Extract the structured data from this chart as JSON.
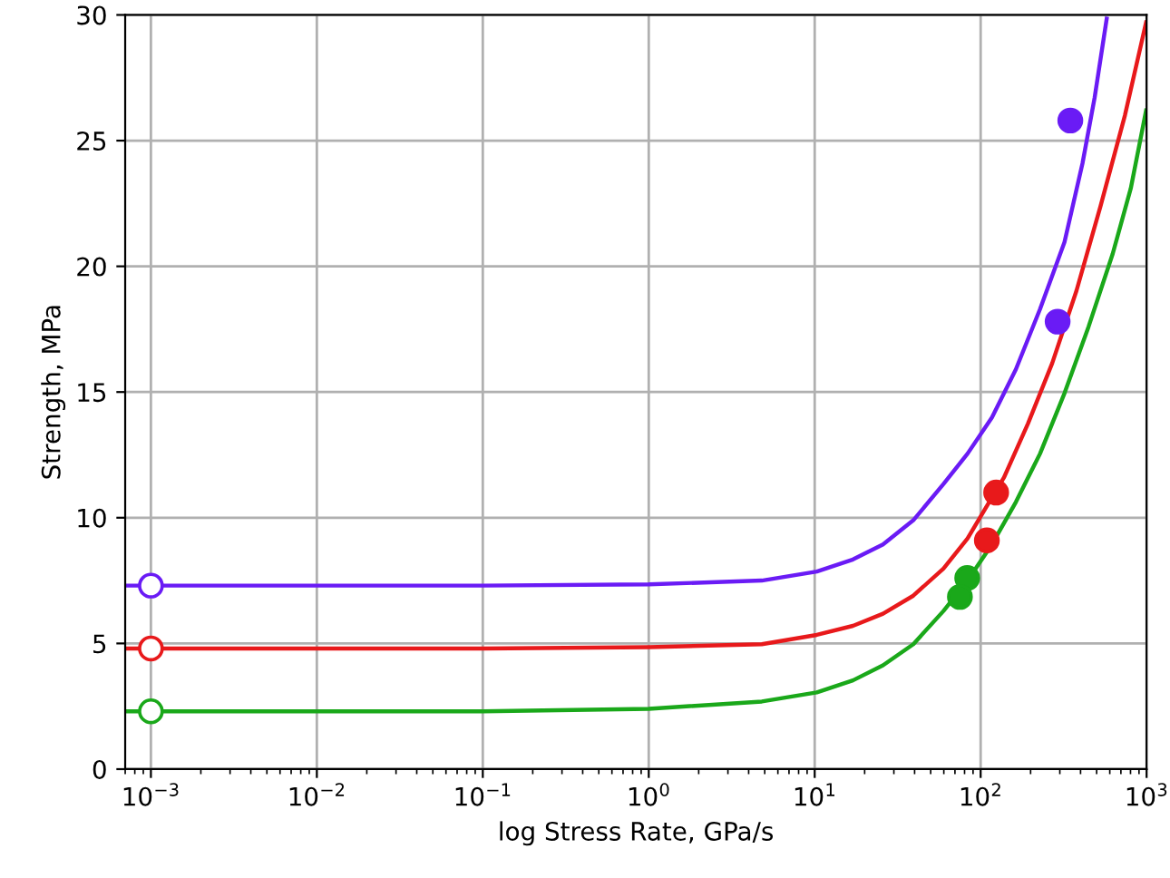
{
  "chart_data": {
    "type": "line",
    "xlabel": "log Stress Rate, GPa/s",
    "ylabel": "Strength, MPa",
    "log": "x",
    "xlim": [
      0.0007,
      1000
    ],
    "ylim": [
      0,
      30
    ],
    "xticks": [
      {
        "value": 0.001,
        "label": "10$^{−3}$"
      },
      {
        "value": 0.01,
        "label": "10$^{−2}$"
      },
      {
        "value": 0.1,
        "label": "10$^{−1}$"
      },
      {
        "value": 1,
        "label": "10$^{0}$"
      },
      {
        "value": 10,
        "label": "10$^{1}$"
      },
      {
        "value": 100,
        "label": "10$^{2}$"
      },
      {
        "value": 1000,
        "label": "10$^{3}$"
      }
    ],
    "yticks": [
      0,
      5,
      10,
      15,
      20,
      25,
      30
    ],
    "grid": true,
    "line_style": "solid",
    "series": [
      {
        "color": "#6a1bf5",
        "x": [
          0.0007,
          0.001,
          0.01,
          0.1,
          1,
          4.8,
          10.3,
          17,
          25.8,
          39.3,
          59.7,
          83.4,
          117,
          163,
          228,
          320,
          411,
          486,
          575
        ],
        "values": [
          7.3,
          7.3,
          7.3,
          7.3,
          7.35,
          7.5,
          7.86,
          8.34,
          8.94,
          9.9,
          11.34,
          12.55,
          13.99,
          15.9,
          18.3,
          20.96,
          24.1,
          26.7,
          29.85
        ]
      },
      {
        "color": "#e8191b",
        "x": [
          0.0007,
          0.001,
          0.01,
          0.1,
          1,
          4.8,
          10.3,
          17,
          25.8,
          39.3,
          59.7,
          83.4,
          107,
          138,
          193,
          270,
          378,
          528,
          740,
          993
        ],
        "values": [
          4.8,
          4.8,
          4.8,
          4.8,
          4.85,
          4.97,
          5.34,
          5.7,
          6.18,
          6.9,
          7.98,
          9.18,
          10.38,
          11.59,
          13.75,
          16.15,
          19.03,
          22.4,
          26.0,
          29.7
        ]
      },
      {
        "color": "#1aa81a",
        "x": [
          0.0007,
          0.001,
          0.01,
          0.1,
          1,
          4.8,
          10.3,
          17,
          25.8,
          39.3,
          59.7,
          83.4,
          117,
          163,
          228,
          320,
          447,
          625,
          803,
          993
        ],
        "values": [
          2.3,
          2.3,
          2.3,
          2.3,
          2.4,
          2.69,
          3.05,
          3.53,
          4.13,
          4.97,
          6.29,
          7.5,
          8.94,
          10.62,
          12.55,
          14.95,
          17.6,
          20.5,
          23.1,
          26.2
        ]
      },
      {
        "type": "scatter",
        "marker": "circle",
        "color": "#6a1bf5",
        "x": [
          347,
          291
        ],
        "values": [
          25.8,
          17.8
        ]
      },
      {
        "type": "scatter",
        "marker": "circle",
        "color": "#e8191b",
        "x": [
          124,
          109
        ],
        "values": [
          11.0,
          9.1
        ]
      },
      {
        "type": "scatter",
        "marker": "circle",
        "color": "#1aa81a",
        "x": [
          83,
          75
        ],
        "values": [
          7.6,
          6.85
        ]
      },
      {
        "type": "scatter",
        "marker": "circle",
        "color": "#6a1bf5",
        "colors": [
          "#ffffff"
        ],
        "x": [
          0.001
        ],
        "values": [
          7.3
        ]
      },
      {
        "type": "scatter",
        "marker": "circle",
        "color": "#e8191b",
        "colors": [
          "#ffffff"
        ],
        "x": [
          0.001
        ],
        "values": [
          4.8
        ]
      },
      {
        "type": "scatter",
        "marker": "circle",
        "color": "#1aa81a",
        "colors": [
          "#ffffff"
        ],
        "x": [
          0.001
        ],
        "values": [
          2.3
        ]
      }
    ]
  }
}
